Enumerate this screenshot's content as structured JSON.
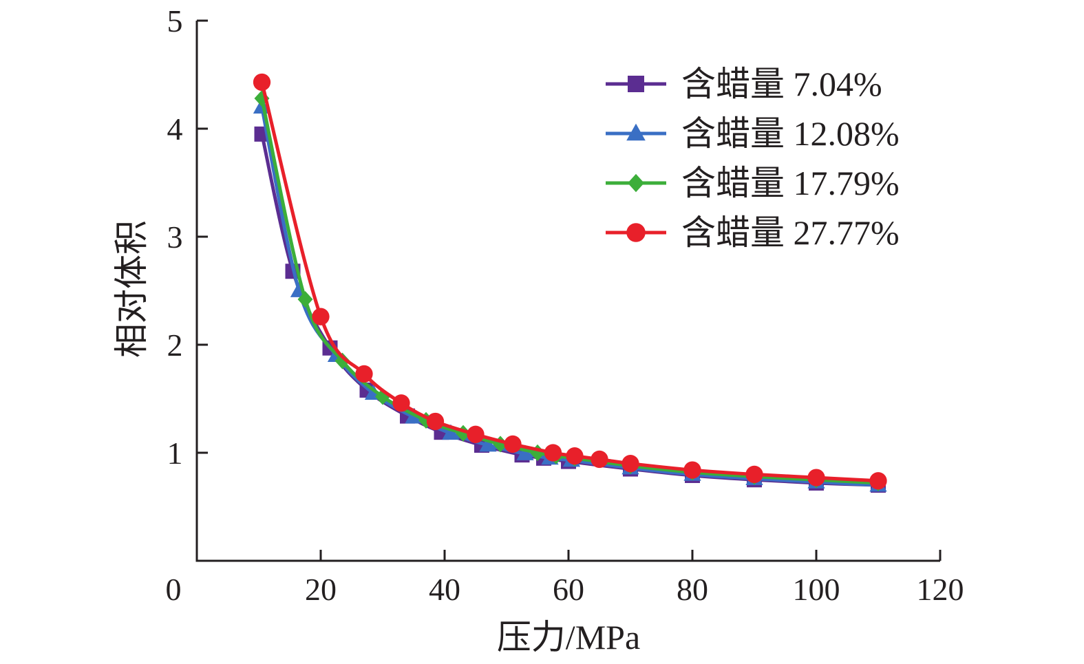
{
  "chart_data": {
    "type": "line",
    "title": "",
    "xlabel": "压力/MPa",
    "ylabel": "相对体积",
    "xlim": [
      0,
      120
    ],
    "ylim": [
      0,
      5
    ],
    "x_ticks": [
      "20",
      "40",
      "60",
      "80",
      "100",
      "120"
    ],
    "y_ticks": [
      "1",
      "2",
      "3",
      "4",
      "5"
    ],
    "origin_label": "0",
    "grid": false,
    "legend_position": "top-right",
    "series": [
      {
        "name": "含蜡量 7.04%",
        "marker": "square",
        "color": "#5b2d91",
        "x": [
          10.5,
          15.5,
          21.5,
          27.5,
          34,
          39.5,
          46,
          52.5,
          56,
          60,
          70,
          80,
          90,
          100,
          110
        ],
        "y": [
          3.95,
          2.68,
          1.97,
          1.58,
          1.34,
          1.19,
          1.07,
          0.98,
          0.95,
          0.92,
          0.85,
          0.79,
          0.75,
          0.72,
          0.7
        ]
      },
      {
        "name": "含蜡量 12.08%",
        "marker": "triangle",
        "color": "#3a6fc4",
        "x": [
          10.5,
          16.5,
          22.5,
          28.5,
          35,
          41,
          47,
          53,
          57,
          60.5,
          70,
          80,
          90,
          100,
          110
        ],
        "y": [
          4.2,
          2.5,
          1.9,
          1.55,
          1.33,
          1.18,
          1.07,
          0.99,
          0.95,
          0.93,
          0.86,
          0.8,
          0.76,
          0.73,
          0.7
        ]
      },
      {
        "name": "含蜡量 17.79%",
        "marker": "diamond",
        "color": "#3cae3a",
        "x": [
          10.5,
          17.5,
          23.5,
          30,
          37,
          43,
          49,
          55,
          58,
          61,
          70,
          80,
          90,
          100,
          110
        ],
        "y": [
          4.28,
          2.42,
          1.85,
          1.52,
          1.3,
          1.18,
          1.08,
          1.0,
          0.97,
          0.95,
          0.88,
          0.82,
          0.78,
          0.75,
          0.72
        ]
      },
      {
        "name": "含蜡量 27.77%",
        "marker": "circle",
        "color": "#e8202a",
        "x": [
          10.5,
          20,
          27,
          33,
          38.5,
          45,
          51,
          57.5,
          61,
          65,
          70,
          80,
          90,
          100,
          110
        ],
        "y": [
          4.43,
          2.26,
          1.73,
          1.46,
          1.29,
          1.17,
          1.08,
          1.0,
          0.97,
          0.94,
          0.9,
          0.84,
          0.8,
          0.77,
          0.74
        ]
      }
    ]
  }
}
